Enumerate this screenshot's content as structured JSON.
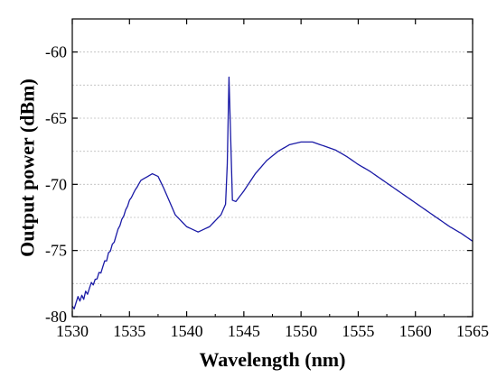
{
  "chart_data": {
    "type": "line",
    "title": "",
    "xlabel": "Wavelength (nm)",
    "ylabel": "Output power (dBm)",
    "xlim": [
      1530,
      1565
    ],
    "ylim": [
      -80,
      -57.5
    ],
    "x_ticks": [
      1530,
      1535,
      1540,
      1545,
      1550,
      1555,
      1560,
      1565
    ],
    "y_ticks": [
      -80,
      -75,
      -70,
      -65,
      -60
    ],
    "grid": "horizontal-dotted",
    "legend": "none",
    "line_color": "#1a1aa6",
    "series": [
      {
        "x": [
          1530,
          1531,
          1532,
          1533,
          1534,
          1535,
          1536,
          1537,
          1537.5,
          1538,
          1539,
          1540,
          1541,
          1542,
          1543,
          1543.4,
          1543.55,
          1543.7,
          1543.85,
          1544,
          1544.3,
          1545,
          1546,
          1547,
          1548,
          1549,
          1550,
          1551,
          1552,
          1553,
          1554,
          1555,
          1556,
          1557,
          1558,
          1559,
          1560,
          1561,
          1562,
          1563,
          1564,
          1565
        ],
        "y": [
          -79.2,
          -78.4,
          -77.3,
          -75.7,
          -73.5,
          -71.2,
          -69.7,
          -69.2,
          -69.4,
          -70.3,
          -72.3,
          -73.2,
          -73.6,
          -73.2,
          -72.3,
          -71.5,
          -68.5,
          -61.9,
          -66.5,
          -71.2,
          -71.3,
          -70.5,
          -69.2,
          -68.2,
          -67.5,
          -67.0,
          -66.8,
          -66.8,
          -67.1,
          -67.4,
          -67.9,
          -68.5,
          -69.0,
          -69.6,
          -70.2,
          -70.8,
          -71.4,
          -72.0,
          -72.6,
          -73.2,
          -73.7,
          -74.3
        ]
      }
    ]
  }
}
